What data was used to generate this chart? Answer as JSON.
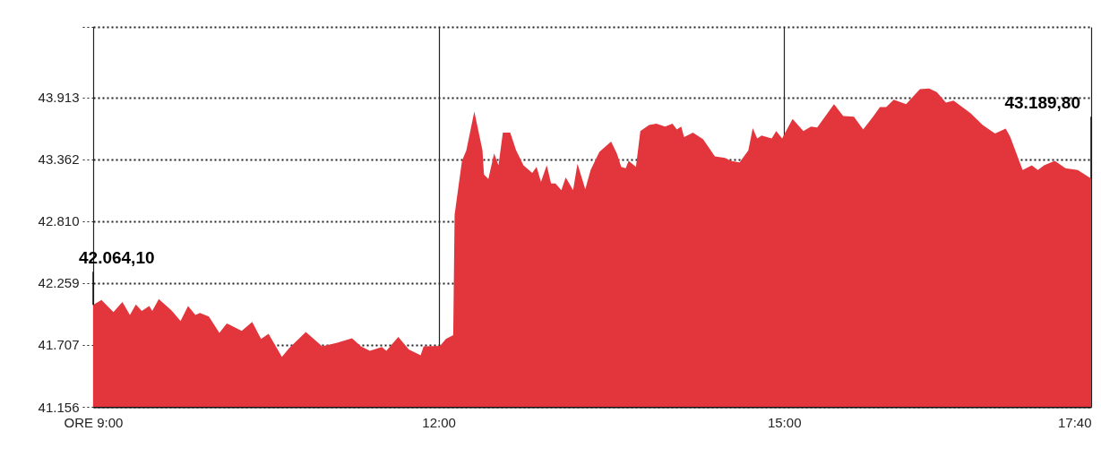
{
  "chart_data": {
    "type": "area",
    "x": [
      9,
      9.072,
      9.176,
      9.254,
      9.319,
      9.371,
      9.422,
      9.487,
      9.513,
      9.57,
      9.681,
      9.759,
      9.824,
      9.888,
      9.927,
      10.005,
      10.096,
      10.16,
      10.29,
      10.381,
      10.458,
      10.523,
      10.639,
      10.704,
      10.847,
      10.989,
      11.119,
      11.248,
      11.326,
      11.403,
      11.507,
      11.546,
      11.65,
      11.741,
      11.844,
      11.87,
      12.013,
      12.063,
      12.127,
      12.139,
      12.203,
      12.241,
      12.31,
      12.381,
      12.394,
      12.432,
      12.482,
      12.52,
      12.558,
      12.622,
      12.673,
      12.737,
      12.813,
      12.851,
      12.889,
      12.939,
      12.977,
      13.015,
      13.066,
      13.104,
      13.168,
      13.206,
      13.274,
      13.32,
      13.396,
      13.498,
      13.548,
      13.586,
      13.625,
      13.65,
      13.714,
      13.752,
      13.828,
      13.891,
      13.967,
      14.031,
      14.069,
      14.107,
      14.132,
      14.209,
      14.298,
      14.399,
      14.488,
      14.538,
      14.614,
      14.69,
      14.728,
      14.767,
      14.805,
      14.893,
      14.932,
      14.983,
      15.074,
      15.168,
      15.234,
      15.288,
      15.434,
      15.514,
      15.607,
      15.687,
      15.767,
      15.833,
      15.887,
      15.953,
      16.06,
      16.18,
      16.26,
      16.326,
      16.406,
      16.472,
      16.619,
      16.725,
      16.832,
      16.925,
      16.965,
      17.072,
      17.152,
      17.204,
      17.258,
      17.351,
      17.444,
      17.551,
      17.667
    ],
    "series": [
      {
        "color": "#e2363c",
        "values": [
          42064,
          42107,
          42001,
          42089,
          41974,
          42067,
          42009,
          42054,
          42009,
          42115,
          42014,
          41921,
          42054,
          41974,
          41993,
          41961,
          41814,
          41899,
          41833,
          41913,
          41761,
          41806,
          41601,
          41681,
          41822,
          41694,
          41726,
          41766,
          41694,
          41654,
          41689,
          41654,
          41779,
          41667,
          41614,
          41694,
          41699,
          41761,
          41795,
          42866,
          43346,
          43440,
          43786,
          43440,
          43226,
          43186,
          43413,
          43306,
          43599,
          43599,
          43440,
          43306,
          43240,
          43293,
          43160,
          43306,
          43146,
          43146,
          43085,
          43200,
          43085,
          43320,
          43093,
          43266,
          43426,
          43519,
          43413,
          43293,
          43280,
          43346,
          43293,
          43612,
          43666,
          43679,
          43652,
          43679,
          43626,
          43652,
          43559,
          43599,
          43538,
          43386,
          43372,
          43346,
          43332,
          43440,
          43639,
          43546,
          43572,
          43546,
          43612,
          43546,
          43719,
          43612,
          43652,
          43644,
          43852,
          43746,
          43740,
          43626,
          43732,
          43826,
          43826,
          43892,
          43852,
          43985,
          43991,
          43959,
          43865,
          43884,
          43772,
          43666,
          43591,
          43634,
          43559,
          43266,
          43306,
          43266,
          43306,
          43346,
          43280,
          43266,
          43190
        ]
      }
    ],
    "xlim": [
      9,
      17.667
    ],
    "xticks": [
      {
        "value": 9,
        "label": "ORE 9:00"
      },
      {
        "value": 12,
        "label": "12:00"
      },
      {
        "value": 15,
        "label": "15:00"
      },
      {
        "value": 17.667,
        "label": "17:40"
      }
    ],
    "ylim": [
      41156,
      44540
    ],
    "yticks": [
      {
        "value": 41156,
        "label": "41.156"
      },
      {
        "value": 41707,
        "label": "41.707"
      },
      {
        "value": 42259,
        "label": "42.259"
      },
      {
        "value": 42810,
        "label": "42.810"
      },
      {
        "value": 43362,
        "label": "43.362"
      },
      {
        "value": 43913,
        "label": "43.913"
      },
      {
        "value": 44540,
        "label": null
      }
    ],
    "grid": true,
    "annotations": [
      {
        "text": "42.064,10",
        "x": 9,
        "y": 42064.1
      },
      {
        "text": "43.189,80",
        "x": 17.667,
        "y": 43189.8
      }
    ]
  }
}
